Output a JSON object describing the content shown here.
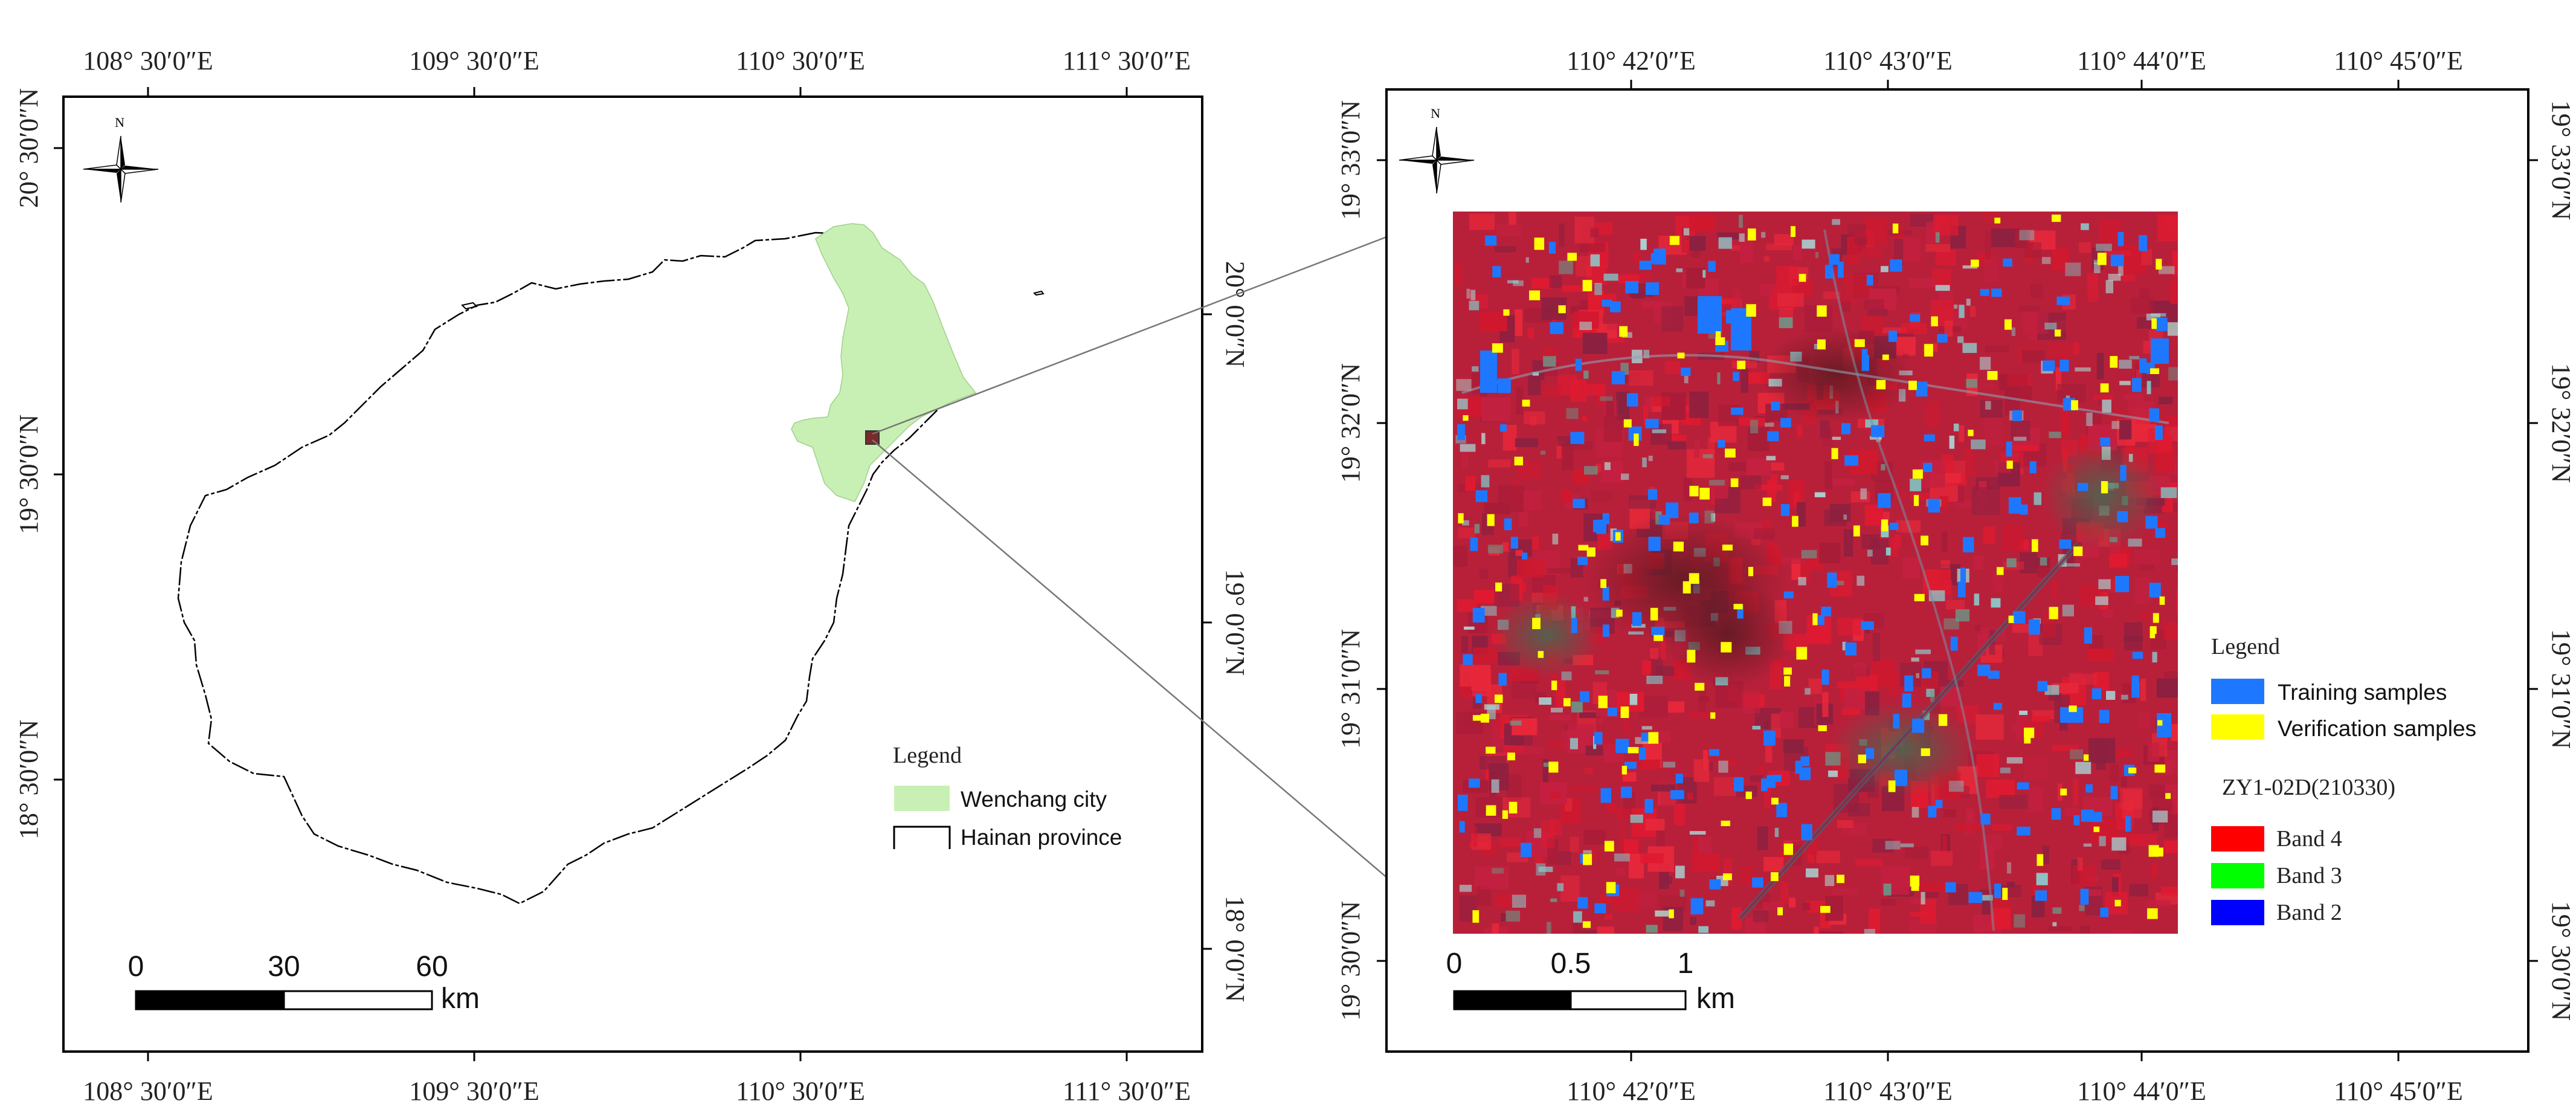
{
  "left_map": {
    "top_labels": [
      "108° 30′0″E",
      "109° 30′0″E",
      "110° 30′0″E",
      "111° 30′0″E"
    ],
    "bottom_labels": [
      "108° 30′0″E",
      "109° 30′0″E",
      "110° 30′0″E",
      "111° 30′0″E"
    ],
    "left_labels": [
      "20° 30′0″N",
      "19° 30′0″N",
      "18° 30′0″N"
    ],
    "right_labels": [
      "20° 0′0″N",
      "19° 0′0″N",
      "18° 0′0″N"
    ],
    "north_label": "N",
    "legend": {
      "title": "Legend",
      "items": [
        "Wenchang city",
        "Hainan province"
      ]
    },
    "scale": {
      "ticks": [
        "0",
        "30",
        "60"
      ],
      "unit": "km"
    }
  },
  "right_map": {
    "top_labels": [
      "110° 42′0″E",
      "110° 43′0″E",
      "110° 44′0″E",
      "110° 45′0″E"
    ],
    "bottom_labels": [
      "110° 42′0″E",
      "110° 43′0″E",
      "110° 44′0″E",
      "110° 45′0″E"
    ],
    "left_labels": [
      "19° 33′0″N",
      "19° 32′0″N",
      "19° 31′0″N",
      "19° 30′0″N"
    ],
    "right_labels": [
      "19° 33′0″N",
      "19° 32′0″N",
      "19° 31′0″N",
      "19° 30′0″N"
    ],
    "north_label": "N",
    "legend": {
      "title": "Legend",
      "samples": [
        "Training samples",
        "Verification samples"
      ],
      "image_title": "ZY1-02D(210330)",
      "bands": [
        "Band 4",
        "Band 3",
        "Band 2"
      ]
    },
    "scale": {
      "ticks": [
        "0",
        "0.5",
        "1"
      ],
      "unit": "km"
    }
  },
  "colors": {
    "wenchang": "#c8f0b4",
    "study_area": "#7a2a2a",
    "training": "#1e78ff",
    "verification": "#ffff00",
    "band4": "#ff0000",
    "band3": "#00ff00",
    "band2": "#0000ff"
  }
}
